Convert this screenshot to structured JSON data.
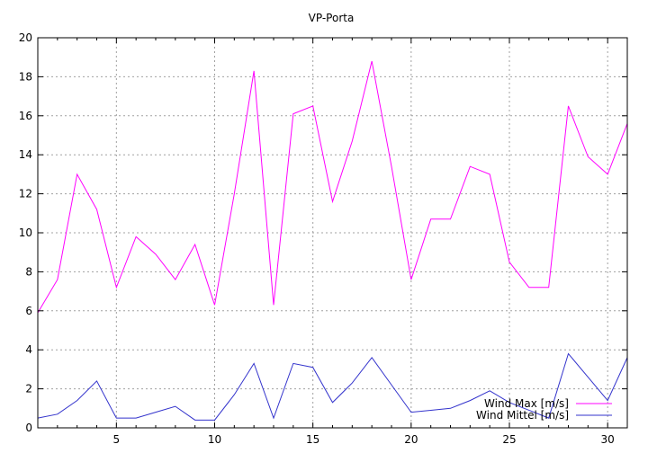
{
  "chart_data": {
    "type": "line",
    "title": "VP-Porta",
    "xlabel": "",
    "ylabel": "",
    "xlim": [
      1,
      31
    ],
    "ylim": [
      0,
      20
    ],
    "x_ticks": [
      5,
      10,
      15,
      20,
      25,
      30
    ],
    "y_ticks": [
      0,
      2,
      4,
      6,
      8,
      10,
      12,
      14,
      16,
      18,
      20
    ],
    "grid": true,
    "legend_position": "bottom-right",
    "x": [
      1,
      2,
      3,
      4,
      5,
      6,
      7,
      8,
      9,
      10,
      11,
      12,
      13,
      14,
      15,
      16,
      17,
      18,
      19,
      20,
      21,
      22,
      23,
      24,
      25,
      26,
      27,
      28,
      29,
      30,
      31
    ],
    "series": [
      {
        "name": "Wind Max [m/s]",
        "color": "#ff00ff",
        "values": [
          5.9,
          7.6,
          13.0,
          11.2,
          7.2,
          9.8,
          8.9,
          7.6,
          9.4,
          6.3,
          12.0,
          18.3,
          6.3,
          16.1,
          16.5,
          11.6,
          14.7,
          18.8,
          13.4,
          7.6,
          10.7,
          10.7,
          13.4,
          13.0,
          8.5,
          7.2,
          7.2,
          16.5,
          13.9,
          13.0,
          15.6
        ]
      },
      {
        "name": "Wind Mittel [m/s]",
        "color": "#3333cc",
        "values": [
          0.5,
          0.7,
          1.4,
          2.4,
          0.5,
          0.5,
          0.8,
          1.1,
          0.4,
          0.4,
          1.7,
          3.3,
          0.5,
          3.3,
          3.1,
          1.3,
          2.3,
          3.6,
          2.2,
          0.8,
          0.9,
          1.0,
          1.4,
          1.9,
          1.3,
          0.9,
          0.5,
          3.8,
          2.6,
          1.4,
          3.6
        ]
      }
    ]
  }
}
